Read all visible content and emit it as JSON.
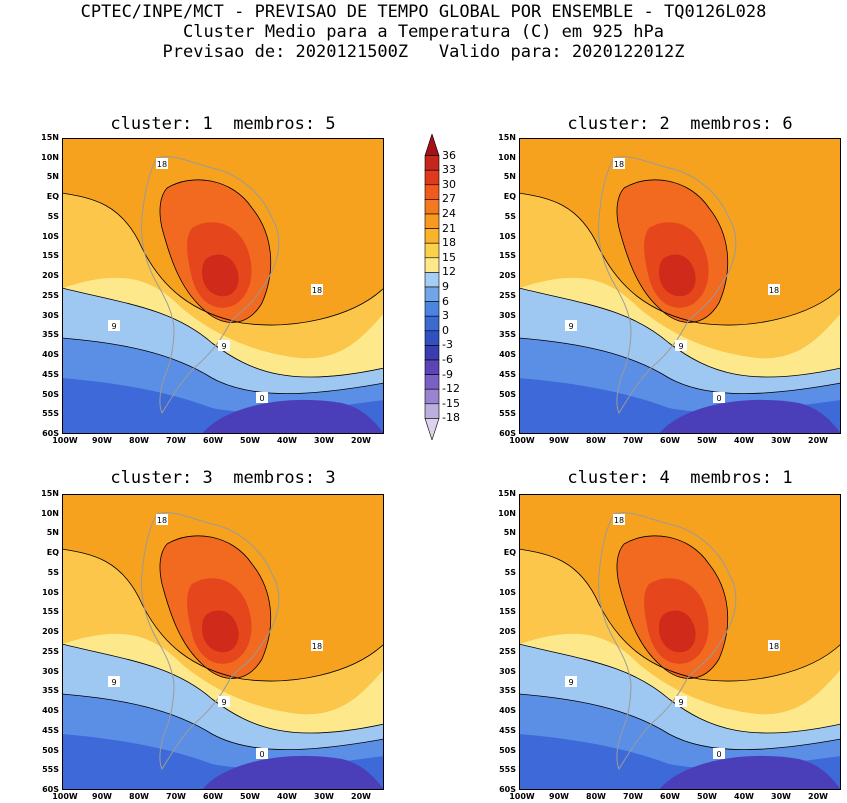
{
  "header": {
    "line1": "CPTEC/INPE/MCT - PREVISAO DE TEMPO GLOBAL POR ENSEMBLE - TQ0126L028",
    "line2": "Cluster Medio para a Temperatura (C) em 925 hPa",
    "line3": "Previsao de: 2020121500Z   Valido para: 2020122012Z"
  },
  "panels": [
    {
      "title": "cluster: 1  membros: 5"
    },
    {
      "title": "cluster: 2  membros: 6"
    },
    {
      "title": "cluster: 3  membros: 3"
    },
    {
      "title": "cluster: 4  membros: 1"
    }
  ],
  "lat_labels": [
    "15N",
    "10N",
    "5N",
    "EQ",
    "5S",
    "10S",
    "15S",
    "20S",
    "25S",
    "30S",
    "35S",
    "40S",
    "45S",
    "50S",
    "55S",
    "60S"
  ],
  "lon_labels": [
    "100W",
    "90W",
    "80W",
    "70W",
    "60W",
    "50W",
    "40W",
    "30W",
    "20W"
  ],
  "contour_labels": [
    "18",
    "9",
    "0"
  ],
  "colorbar": {
    "levels": [
      "36",
      "33",
      "30",
      "27",
      "24",
      "21",
      "18",
      "15",
      "12",
      "9",
      "6",
      "3",
      "0",
      "-3",
      "-6",
      "-9",
      "-12",
      "-15",
      "-18"
    ],
    "colors": [
      "#a50f15",
      "#c8261c",
      "#e03a1c",
      "#f05a1e",
      "#f57a1f",
      "#f79a1f",
      "#f9b42a",
      "#fbd04a",
      "#fde98c",
      "#a6cef5",
      "#6fa6ea",
      "#4a86e0",
      "#3a6ad2",
      "#3050c2",
      "#3a3cb0",
      "#5a44b8",
      "#7a60c4",
      "#9a84d2",
      "#bcaee0",
      "#dcd4ee"
    ]
  },
  "colors": {
    "warm_base": "#f7a21f",
    "hot": "#f26a1f",
    "hotter": "#e5461c",
    "hottest": "#d02a1a",
    "mild": "#fbc64a",
    "cool_light": "#fde98c",
    "cool": "#9ec7f2",
    "cold": "#5b8fe6",
    "colder": "#3d6ad8",
    "coldest": "#4a3fb8",
    "land_outline": "#9a9a9a"
  }
}
